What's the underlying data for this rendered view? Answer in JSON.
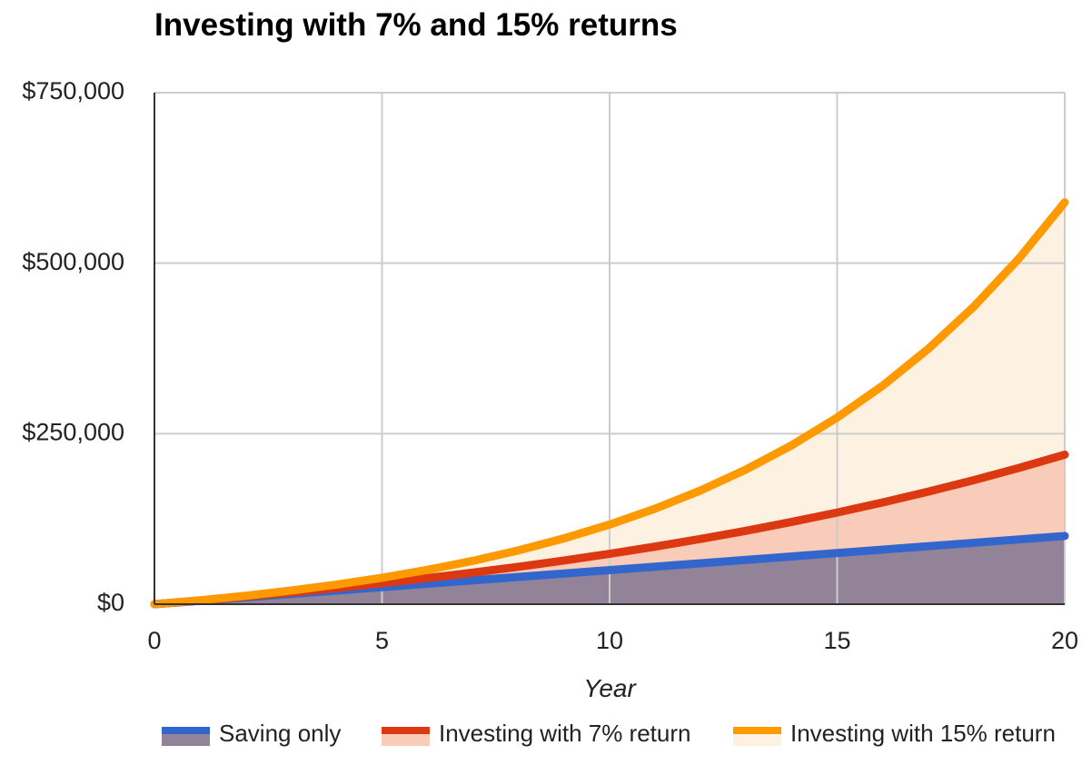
{
  "chart_data": {
    "type": "area",
    "title": "Investing with 7% and 15% returns",
    "xlabel": "Year",
    "ylabel": "",
    "xlim": [
      0,
      20
    ],
    "ylim": [
      0,
      750000
    ],
    "x_ticks": [
      0,
      5,
      10,
      15,
      20
    ],
    "x_tick_labels": [
      "0",
      "5",
      "10",
      "15",
      "20"
    ],
    "y_ticks": [
      0,
      250000,
      500000,
      750000
    ],
    "y_tick_labels": [
      "$0",
      "$250,000",
      "$500,000",
      "$750,000"
    ],
    "grid": true,
    "legend_position": "bottom",
    "x": [
      0,
      1,
      2,
      3,
      4,
      5,
      6,
      7,
      8,
      9,
      10,
      11,
      12,
      13,
      14,
      15,
      16,
      17,
      18,
      19,
      20
    ],
    "series": [
      {
        "name": "Saving only",
        "color": "#3366cc",
        "fill": "#938399",
        "values": [
          0,
          5000,
          10000,
          15000,
          20000,
          25000,
          30000,
          35000,
          40000,
          45000,
          50000,
          55000,
          60000,
          65000,
          70000,
          75000,
          80000,
          85000,
          90000,
          95000,
          100000
        ]
      },
      {
        "name": "Investing with 7% return",
        "color": "#dc3912",
        "fill": "#f8ccb9",
        "values": [
          0,
          5350,
          11070,
          17200,
          23750,
          30760,
          38260,
          46290,
          54880,
          64060,
          73900,
          84420,
          95670,
          107720,
          120610,
          134400,
          149160,
          164950,
          181850,
          199930,
          219280
        ]
      },
      {
        "name": "Investing with 15% return",
        "color": "#ff9900",
        "fill": "#fdf2e2",
        "values": [
          0,
          5750,
          12360,
          19970,
          28720,
          38780,
          50350,
          63650,
          78950,
          96540,
          116780,
          140040,
          166800,
          197570,
          232960,
          273650,
          320450,
          374270,
          436160,
          507340,
          589190
        ]
      }
    ]
  }
}
